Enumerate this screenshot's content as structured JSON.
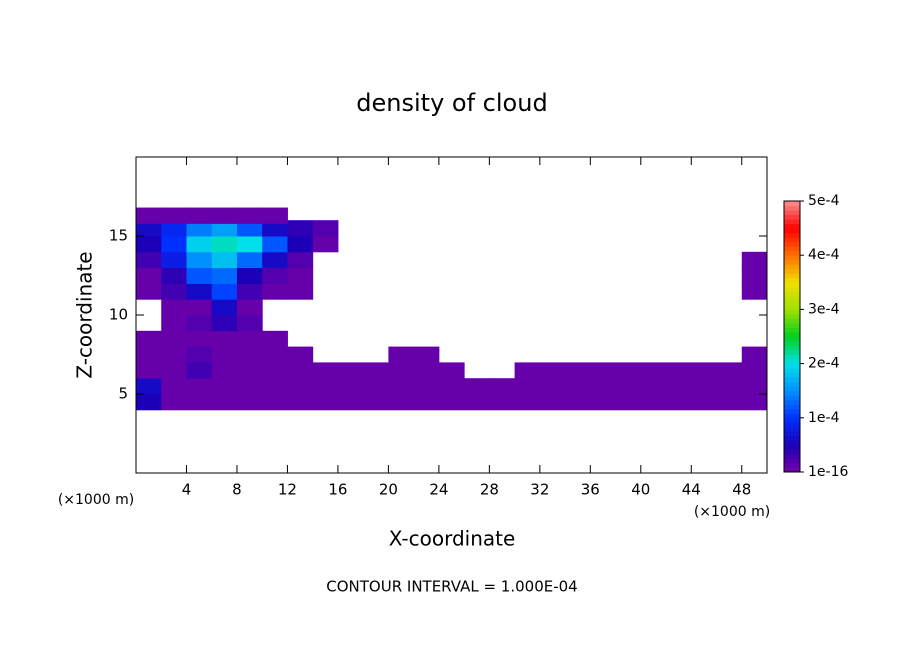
{
  "chart_data": {
    "type": "heatmap",
    "title": "density of cloud",
    "xlabel": "X-coordinate",
    "ylabel": "Z-coordinate",
    "x_unit": "(×1000 m)",
    "annotation": "CONTOUR INTERVAL = 1.000E-04",
    "xlim": [
      0,
      50
    ],
    "ylim": [
      0,
      20
    ],
    "xticks": [
      4,
      8,
      12,
      16,
      20,
      24,
      28,
      32,
      36,
      40,
      44,
      48
    ],
    "yticks": [
      5,
      10,
      15
    ],
    "clim": [
      1e-16,
      0.0005
    ],
    "cticks": [
      {
        "value": 0.0005,
        "label": "5e-4"
      },
      {
        "value": 0.0004,
        "label": "4e-4"
      },
      {
        "value": 0.0003,
        "label": "3e-4"
      },
      {
        "value": 0.0002,
        "label": "2e-4"
      },
      {
        "value": 0.0001,
        "label": "1e-4"
      },
      {
        "value": 1e-16,
        "label": "1e-16"
      }
    ],
    "colormap": [
      "#7800a8",
      "#1c00b8",
      "#0030ff",
      "#0090ff",
      "#00e0e8",
      "#00d020",
      "#a0e000",
      "#f0e000",
      "#ff7000",
      "#ff0000",
      "#ff9090"
    ],
    "x": [
      1,
      3,
      5,
      7,
      9,
      11,
      13,
      15,
      17,
      19,
      21,
      23,
      25,
      27,
      29,
      31,
      33,
      35,
      37,
      39,
      41,
      43,
      45,
      47,
      49
    ],
    "y": [
      4.5,
      5.5,
      6.5,
      7.5,
      8.5,
      9.5,
      10.5,
      11.5,
      12.5,
      13.5,
      14.5,
      15.5,
      16.3
    ],
    "z": [
      [
        5e-05,
        1e-05,
        1e-05,
        1e-05,
        1e-05,
        1e-05,
        1e-05,
        1e-05,
        1e-05,
        1e-05,
        1e-05,
        1e-05,
        1e-05,
        1e-05,
        1e-05,
        1e-05,
        1e-05,
        1e-05,
        1e-05,
        1e-05,
        1e-05,
        1e-05,
        1e-05,
        1e-05,
        1e-05
      ],
      [
        6e-05,
        1e-05,
        1e-05,
        1e-05,
        1e-05,
        1e-05,
        1e-05,
        1e-05,
        1e-05,
        1e-05,
        1e-05,
        1e-05,
        1e-05,
        1e-05,
        1e-05,
        1e-05,
        1e-05,
        1e-05,
        1e-05,
        1e-05,
        1e-05,
        1e-05,
        1e-05,
        1e-05,
        1e-05
      ],
      [
        1e-05,
        1e-05,
        3e-05,
        1e-05,
        1e-05,
        1e-05,
        1e-05,
        1e-05,
        1e-05,
        1e-05,
        1e-05,
        1e-05,
        1e-05,
        null,
        null,
        1e-05,
        1e-05,
        1e-05,
        1e-05,
        1e-05,
        1e-05,
        1e-05,
        1e-05,
        1e-05,
        1e-05
      ],
      [
        1e-05,
        1e-05,
        2e-05,
        1e-05,
        1e-05,
        1e-05,
        1e-05,
        null,
        null,
        null,
        1e-05,
        1e-05,
        null,
        null,
        null,
        null,
        null,
        null,
        null,
        null,
        null,
        null,
        null,
        null,
        1e-05
      ],
      [
        1e-05,
        1e-05,
        1e-05,
        1e-05,
        1e-05,
        1e-05,
        null,
        null,
        null,
        null,
        null,
        null,
        null,
        null,
        null,
        null,
        null,
        null,
        null,
        null,
        null,
        null,
        null,
        null,
        null
      ],
      [
        null,
        1e-05,
        2e-05,
        4e-05,
        2e-05,
        null,
        null,
        null,
        null,
        null,
        null,
        null,
        null,
        null,
        null,
        null,
        null,
        null,
        null,
        null,
        null,
        null,
        null,
        null,
        null
      ],
      [
        null,
        1e-05,
        1e-05,
        6e-05,
        1e-05,
        null,
        null,
        null,
        null,
        null,
        null,
        null,
        null,
        null,
        null,
        null,
        null,
        null,
        null,
        null,
        null,
        null,
        null,
        null,
        null
      ],
      [
        1e-05,
        3e-05,
        6e-05,
        0.00011,
        3e-05,
        1e-05,
        1e-05,
        null,
        null,
        null,
        null,
        null,
        null,
        null,
        null,
        null,
        null,
        null,
        null,
        null,
        null,
        null,
        null,
        null,
        1e-05
      ],
      [
        1e-05,
        4e-05,
        0.00012,
        0.00013,
        5e-05,
        2e-05,
        1e-05,
        null,
        null,
        null,
        null,
        null,
        null,
        null,
        null,
        null,
        null,
        null,
        null,
        null,
        null,
        null,
        null,
        null,
        1e-05
      ],
      [
        3e-05,
        8e-05,
        0.00015,
        0.00018,
        0.00013,
        6e-05,
        2e-05,
        null,
        null,
        null,
        null,
        null,
        null,
        null,
        null,
        null,
        null,
        null,
        null,
        null,
        null,
        null,
        null,
        null,
        1e-05
      ],
      [
        5e-05,
        0.0001,
        0.00019,
        0.00021,
        0.0002,
        0.00012,
        5e-05,
        1e-05,
        null,
        null,
        null,
        null,
        null,
        null,
        null,
        null,
        null,
        null,
        null,
        null,
        null,
        null,
        null,
        null,
        null
      ],
      [
        6e-05,
        9e-05,
        0.00014,
        0.00016,
        0.00012,
        6e-05,
        4e-05,
        2e-05,
        null,
        null,
        null,
        null,
        null,
        null,
        null,
        null,
        null,
        null,
        null,
        null,
        null,
        null,
        null,
        null,
        null
      ],
      [
        1e-05,
        1e-05,
        1e-05,
        1e-05,
        1e-05,
        1e-05,
        null,
        null,
        null,
        null,
        null,
        null,
        null,
        null,
        null,
        null,
        null,
        null,
        null,
        null,
        null,
        null,
        null,
        null,
        null
      ]
    ]
  }
}
